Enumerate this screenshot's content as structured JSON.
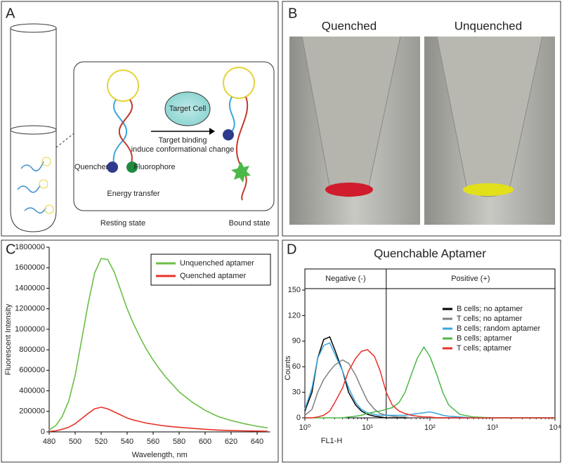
{
  "panels": {
    "A": {
      "label": "A",
      "target_cell": "Target Cell",
      "quencher": "Quencher",
      "fluorophore": "Fluorophore",
      "energy_transfer": "Energy transfer",
      "arrow_label": "Target binding",
      "arrow_sublabel": "induce conformational change",
      "resting_state": "Resting state",
      "bound_state": "Bound state"
    },
    "B": {
      "label": "B",
      "left_caption": "Quenched",
      "right_caption": "Unquenched"
    }
  },
  "chart_data": [
    {
      "type": "line",
      "panel_label": "C",
      "xlabel": "Wavelength, nm",
      "ylabel": "Fluorescent Intensity",
      "xlim": [
        480,
        650
      ],
      "xticks": [
        480,
        500,
        520,
        540,
        560,
        580,
        600,
        620,
        640
      ],
      "ylim": [
        0,
        1800000
      ],
      "yticks": [
        0,
        200000,
        400000,
        600000,
        800000,
        1000000,
        1200000,
        1400000,
        1600000,
        1800000
      ],
      "legend": "upper right",
      "x": [
        480,
        485,
        490,
        495,
        500,
        505,
        510,
        515,
        520,
        525,
        530,
        535,
        540,
        545,
        550,
        555,
        560,
        565,
        570,
        575,
        580,
        590,
        600,
        610,
        620,
        630,
        640,
        648
      ],
      "series": [
        {
          "name": "Unquenched aptamer",
          "color": "#6abf45",
          "values": [
            20000,
            60000,
            150000,
            300000,
            550000,
            900000,
            1250000,
            1550000,
            1690000,
            1680000,
            1560000,
            1380000,
            1200000,
            1050000,
            920000,
            800000,
            700000,
            610000,
            530000,
            460000,
            390000,
            290000,
            210000,
            150000,
            110000,
            80000,
            55000,
            40000
          ]
        },
        {
          "name": "Quenched aptamer",
          "color": "#e8312a",
          "values": [
            5000,
            10000,
            25000,
            45000,
            80000,
            130000,
            180000,
            225000,
            240000,
            225000,
            195000,
            165000,
            135000,
            115000,
            100000,
            85000,
            75000,
            65000,
            57000,
            50000,
            45000,
            35000,
            25000,
            18000,
            13000,
            10000,
            8000,
            6000
          ]
        }
      ]
    },
    {
      "type": "step",
      "panel_label": "D",
      "title": "Quenchable Aptamer",
      "xlabel": "FL1-H",
      "ylabel": "Counts",
      "xscale": "log",
      "xlim": [
        1,
        10000
      ],
      "xticks": [
        {
          "value": 1,
          "label": "10⁰"
        },
        {
          "value": 10,
          "label": "10¹"
        },
        {
          "value": 100,
          "label": "10²"
        },
        {
          "value": 1000,
          "label": "10³"
        },
        {
          "value": 10000,
          "label": "10⁴"
        }
      ],
      "ylim": [
        0,
        150
      ],
      "yticks": [
        0,
        30,
        60,
        90,
        120,
        150
      ],
      "gate": 20,
      "regions": [
        "Negative (-)",
        "Positive (+)"
      ],
      "legend": "upper right",
      "x": [
        1,
        1.3,
        1.6,
        2,
        2.5,
        3,
        4,
        5,
        6.5,
        8,
        10,
        13,
        16,
        20,
        25,
        32,
        40,
        50,
        63,
        80,
        100,
        130,
        160,
        200,
        300,
        500,
        1000,
        10000
      ],
      "series": [
        {
          "name": "B cells; no aptamer",
          "color": "#000000",
          "values": [
            8,
            30,
            70,
            92,
            95,
            80,
            55,
            30,
            15,
            8,
            4,
            2,
            1,
            0,
            0,
            0,
            0,
            0,
            0,
            0,
            0,
            0,
            0,
            0,
            0,
            0,
            0,
            0
          ]
        },
        {
          "name": "T cells; no aptamer",
          "color": "#808080",
          "values": [
            3,
            10,
            30,
            45,
            55,
            62,
            68,
            64,
            50,
            35,
            20,
            10,
            5,
            3,
            2,
            1,
            1,
            0,
            0,
            0,
            0,
            0,
            0,
            0,
            0,
            0,
            0,
            0
          ]
        },
        {
          "name": "B cells; random aptamer",
          "color": "#3aa6dd",
          "values": [
            10,
            35,
            70,
            85,
            88,
            75,
            55,
            35,
            18,
            10,
            6,
            4,
            3,
            3,
            3,
            3,
            3,
            4,
            5,
            6,
            7,
            5,
            3,
            2,
            1,
            0,
            0,
            0
          ]
        },
        {
          "name": "B cells; aptamer",
          "color": "#4cb848",
          "values": [
            0,
            0,
            0,
            0,
            0,
            0,
            0,
            1,
            2,
            3,
            5,
            7,
            8,
            10,
            12,
            18,
            30,
            50,
            70,
            83,
            72,
            50,
            30,
            15,
            4,
            1,
            0,
            0
          ]
        },
        {
          "name": "T cells; aptamer",
          "color": "#e8312a",
          "values": [
            0,
            0,
            1,
            3,
            8,
            18,
            35,
            55,
            70,
            78,
            80,
            72,
            55,
            30,
            15,
            8,
            5,
            3,
            2,
            1,
            1,
            0,
            0,
            0,
            0,
            0,
            0,
            0
          ]
        }
      ]
    }
  ]
}
